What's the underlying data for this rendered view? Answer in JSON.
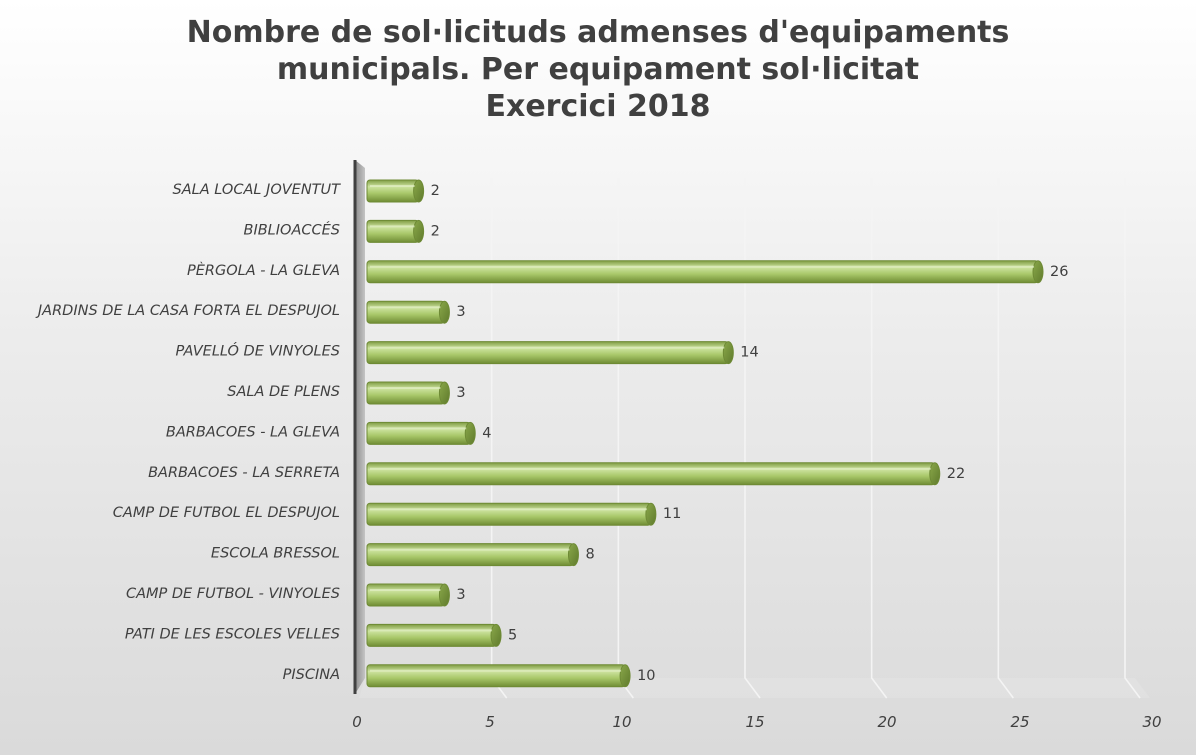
{
  "chart_data": {
    "type": "bar",
    "orientation": "horizontal",
    "title": [
      "Nombre de sol·licituds admenses d'equipaments",
      "municipals. Per equipament sol·licitat",
      "Exercici 2018"
    ],
    "categories": [
      "SALA LOCAL JOVENTUT",
      "BIBLIOACCÉS",
      "PÈRGOLA - LA GLEVA",
      "JARDINS DE LA CASA FORTA EL DESPUJOL",
      "PAVELLÓ DE VINYOLES",
      "SALA DE PLENS",
      "BARBACOES - LA GLEVA",
      "BARBACOES - LA SERRETA",
      "CAMP DE FUTBOL EL DESPUJOL",
      "ESCOLA BRESSOL",
      "CAMP DE FUTBOL - VINYOLES",
      "PATI DE LES ESCOLES VELLES",
      "PISCINA"
    ],
    "values": [
      2,
      2,
      26,
      3,
      14,
      3,
      4,
      22,
      11,
      8,
      3,
      5,
      10
    ],
    "xlim": [
      0,
      30
    ],
    "x_ticks": [
      0,
      5,
      10,
      15,
      20,
      25,
      30
    ],
    "xlabel": "",
    "ylabel": "",
    "grid": true,
    "data_labels": true,
    "legend": "none",
    "bar_color": "#9bbb59",
    "bar_edge_color": "#6e8a35"
  }
}
